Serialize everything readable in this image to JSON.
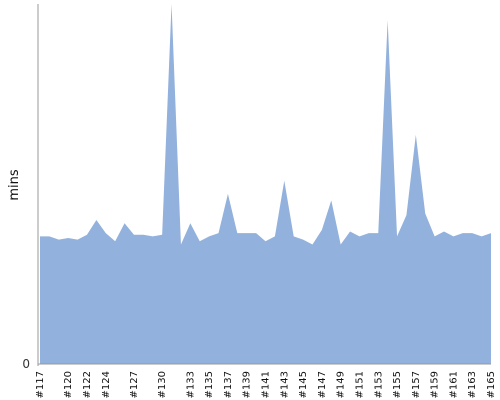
{
  "chart_data": {
    "type": "area",
    "ylabel": "mins",
    "y_tick_labels": [
      "0"
    ],
    "ylim": [
      0,
      110
    ],
    "grid": false,
    "legend": "none",
    "colors": {
      "fill": "#92b1dc",
      "axis": "#999999",
      "text": "#111111"
    },
    "x": [
      "#117",
      "#118",
      "#119",
      "#120",
      "#121",
      "#122",
      "#123",
      "#124",
      "#125",
      "#126",
      "#127",
      "#128",
      "#129",
      "#130",
      "#131",
      "#132",
      "#133",
      "#134",
      "#135",
      "#136",
      "#137",
      "#138",
      "#139",
      "#140",
      "#141",
      "#142",
      "#143",
      "#144",
      "#145",
      "#146",
      "#147",
      "#148",
      "#149",
      "#150",
      "#151",
      "#152",
      "#153",
      "#154",
      "#155",
      "#156",
      "#157",
      "#158",
      "#159",
      "#160",
      "#161",
      "#162",
      "#163",
      "#164",
      "#165"
    ],
    "x_tick_labels": [
      "#117",
      "#120",
      "#122",
      "#124",
      "#127",
      "#130",
      "#133",
      "#135",
      "#137",
      "#139",
      "#141",
      "#143",
      "#145",
      "#147",
      "#149",
      "#151",
      "#153",
      "#155",
      "#157",
      "#159",
      "#161",
      "#163",
      "#165"
    ],
    "values": [
      39,
      39,
      38,
      38.5,
      38,
      39.5,
      44,
      40,
      37.5,
      43,
      39.5,
      39.5,
      39,
      39.5,
      110,
      36.5,
      43,
      37.5,
      39,
      40,
      52,
      40,
      40,
      40,
      37.5,
      39,
      56,
      39,
      38,
      36.5,
      41,
      50,
      36.5,
      40.5,
      39,
      40,
      40,
      105,
      39,
      45.5,
      70,
      46,
      39,
      40.5,
      39,
      40,
      40,
      39,
      40
    ]
  }
}
